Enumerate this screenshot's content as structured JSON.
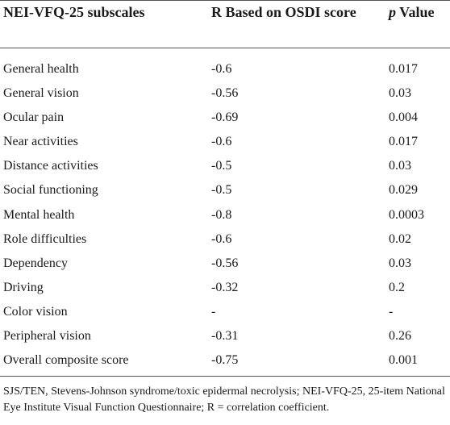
{
  "table": {
    "headers": {
      "col1": "NEI-VFQ-25 subscales",
      "col2": "R Based on OSDI score",
      "col3_italic": "p",
      "col3_rest": " Value"
    },
    "rows": [
      {
        "subscale": "General health",
        "r": "-0.6",
        "p": "0.017"
      },
      {
        "subscale": "General vision",
        "r": "-0.56",
        "p": "0.03"
      },
      {
        "subscale": "Ocular pain",
        "r": "-0.69",
        "p": "0.004"
      },
      {
        "subscale": "Near activities",
        "r": "-0.6",
        "p": "0.017"
      },
      {
        "subscale": "Distance activities",
        "r": "-0.5",
        "p": "0.03"
      },
      {
        "subscale": "Social functioning",
        "r": "-0.5",
        "p": "0.029"
      },
      {
        "subscale": "Mental health",
        "r": "-0.8",
        "p": "0.0003"
      },
      {
        "subscale": "Role difficulties",
        "r": "-0.6",
        "p": "0.02"
      },
      {
        "subscale": "Dependency",
        "r": "-0.56",
        "p": "0.03"
      },
      {
        "subscale": "Driving",
        "r": "-0.32",
        "p": "0.2"
      },
      {
        "subscale": "Color vision",
        "r": "-",
        "p": "-"
      },
      {
        "subscale": "Peripheral vision",
        "r": "-0.31",
        "p": "0.26"
      },
      {
        "subscale": "Overall composite score",
        "r": "-0.75",
        "p": "0.001"
      }
    ]
  },
  "footnote": "SJS/TEN, Stevens-Johnson syndrome/toxic epidermal necrolysis; NEI-VFQ-25, 25-item National Eye Institute Visual Function Questionnaire; R = correlation coefficient."
}
